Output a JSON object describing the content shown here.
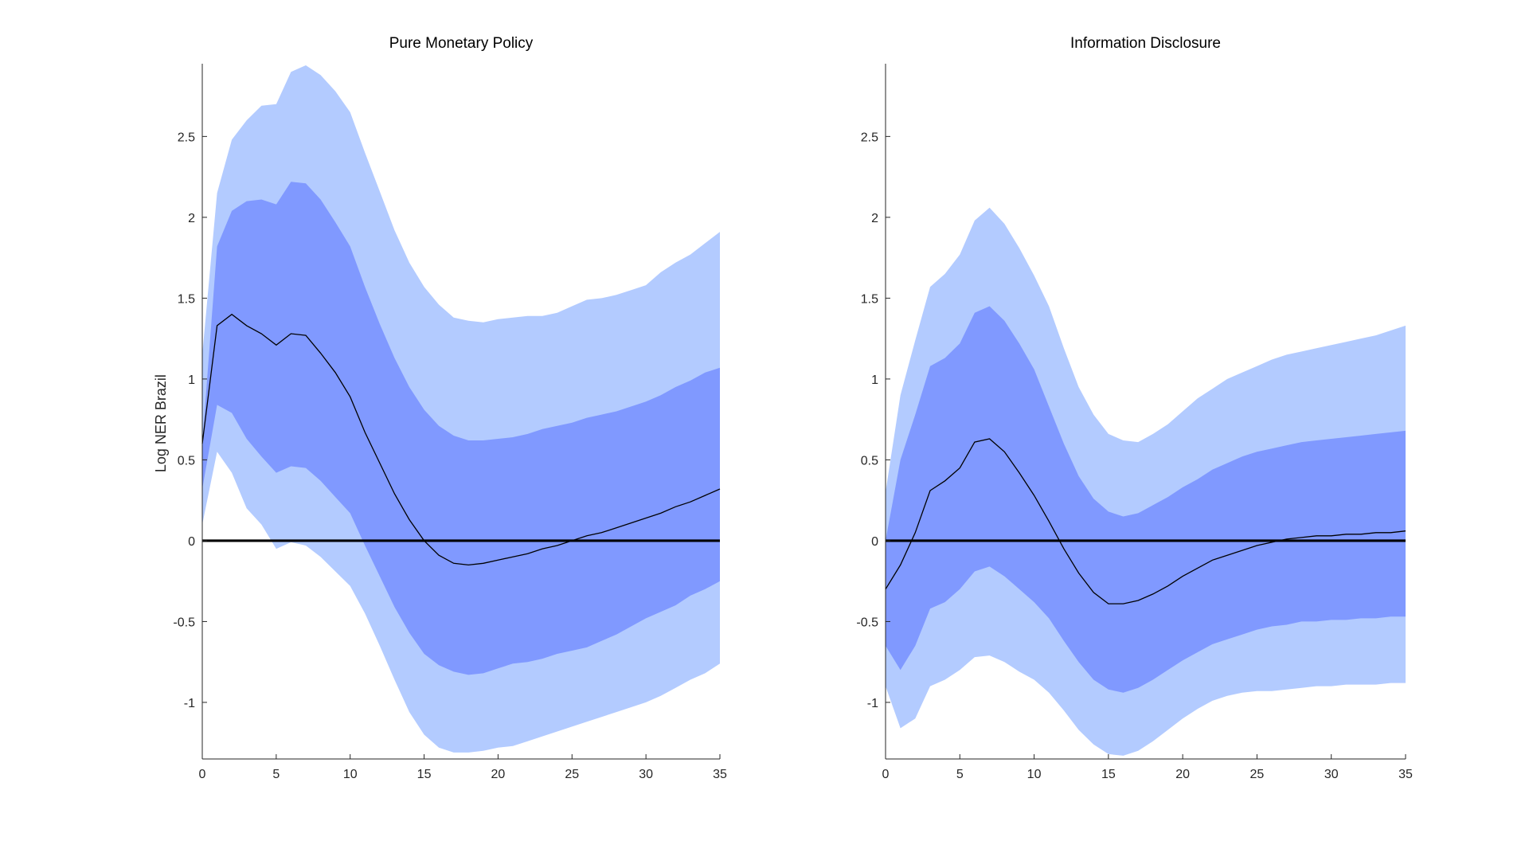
{
  "colors": {
    "band_outer": "#b3cbff",
    "band_inner": "#8099ff",
    "median_line": "#000000",
    "zero_line": "#000000",
    "axis": "#262626"
  },
  "chart_data": [
    {
      "type": "area",
      "title": "Pure Monetary Policy",
      "xlabel": "",
      "ylabel": "Log NER Brazil",
      "xlim": [
        0,
        35
      ],
      "ylim": [
        -1.35,
        2.95
      ],
      "xticks": [
        0,
        5,
        10,
        15,
        20,
        25,
        30,
        35
      ],
      "xtick_labels": [
        "0",
        "5",
        "10",
        "15",
        "20",
        "25",
        "30",
        "35"
      ],
      "yticks": [
        -1,
        -0.5,
        0,
        0.5,
        1,
        1.5,
        2,
        2.5
      ],
      "ytick_labels": [
        "-1",
        "-0.5",
        "0",
        "0.5",
        "1",
        "1.5",
        "2",
        "2.5"
      ],
      "grid": false,
      "x": [
        0,
        1,
        2,
        3,
        4,
        5,
        6,
        7,
        8,
        9,
        10,
        11,
        12,
        13,
        14,
        15,
        16,
        17,
        18,
        19,
        20,
        21,
        22,
        23,
        24,
        25,
        26,
        27,
        28,
        29,
        30,
        31,
        32,
        33,
        34,
        35
      ],
      "series": [
        {
          "name": "outer_upper",
          "values": [
            1.15,
            2.15,
            2.48,
            2.6,
            2.69,
            2.7,
            2.9,
            2.94,
            2.88,
            2.78,
            2.65,
            2.4,
            2.16,
            1.92,
            1.72,
            1.57,
            1.46,
            1.38,
            1.36,
            1.35,
            1.37,
            1.38,
            1.39,
            1.39,
            1.41,
            1.45,
            1.49,
            1.5,
            1.52,
            1.55,
            1.58,
            1.66,
            1.72,
            1.77,
            1.84,
            1.91
          ]
        },
        {
          "name": "inner_upper",
          "values": [
            0.6,
            1.82,
            2.04,
            2.1,
            2.11,
            2.08,
            2.22,
            2.21,
            2.11,
            1.97,
            1.82,
            1.57,
            1.34,
            1.13,
            0.95,
            0.81,
            0.71,
            0.65,
            0.62,
            0.62,
            0.63,
            0.64,
            0.66,
            0.69,
            0.71,
            0.73,
            0.76,
            0.78,
            0.8,
            0.83,
            0.86,
            0.9,
            0.95,
            0.99,
            1.04,
            1.07
          ]
        },
        {
          "name": "median",
          "values": [
            0.6,
            1.33,
            1.4,
            1.33,
            1.28,
            1.21,
            1.28,
            1.27,
            1.16,
            1.04,
            0.89,
            0.67,
            0.48,
            0.29,
            0.13,
            0.0,
            -0.09,
            -0.14,
            -0.15,
            -0.14,
            -0.12,
            -0.1,
            -0.08,
            -0.05,
            -0.03,
            0.0,
            0.03,
            0.05,
            0.08,
            0.11,
            0.14,
            0.17,
            0.21,
            0.24,
            0.28,
            0.32
          ]
        },
        {
          "name": "inner_lower",
          "values": [
            0.32,
            0.84,
            0.79,
            0.63,
            0.52,
            0.42,
            0.46,
            0.45,
            0.37,
            0.27,
            0.17,
            -0.03,
            -0.22,
            -0.41,
            -0.57,
            -0.7,
            -0.77,
            -0.81,
            -0.83,
            -0.82,
            -0.79,
            -0.76,
            -0.75,
            -0.73,
            -0.7,
            -0.68,
            -0.66,
            -0.62,
            -0.58,
            -0.53,
            -0.48,
            -0.44,
            -0.4,
            -0.34,
            -0.3,
            -0.25
          ]
        },
        {
          "name": "outer_lower",
          "values": [
            0.1,
            0.55,
            0.42,
            0.2,
            0.1,
            -0.05,
            -0.01,
            -0.03,
            -0.1,
            -0.19,
            -0.28,
            -0.45,
            -0.65,
            -0.86,
            -1.06,
            -1.2,
            -1.28,
            -1.31,
            -1.31,
            -1.3,
            -1.28,
            -1.27,
            -1.24,
            -1.21,
            -1.18,
            -1.15,
            -1.12,
            -1.09,
            -1.06,
            -1.03,
            -1.0,
            -0.96,
            -0.91,
            -0.86,
            -0.82,
            -0.76
          ]
        }
      ]
    },
    {
      "type": "area",
      "title": "Information Disclosure",
      "xlabel": "",
      "ylabel": "",
      "xlim": [
        0,
        35
      ],
      "ylim": [
        -1.35,
        2.95
      ],
      "xticks": [
        0,
        5,
        10,
        15,
        20,
        25,
        30,
        35
      ],
      "xtick_labels": [
        "0",
        "5",
        "10",
        "15",
        "20",
        "25",
        "30",
        "35"
      ],
      "yticks": [
        -1,
        -0.5,
        0,
        0.5,
        1,
        1.5,
        2,
        2.5
      ],
      "ytick_labels": [
        "-1",
        "-0.5",
        "0",
        "0.5",
        "1",
        "1.5",
        "2",
        "2.5"
      ],
      "grid": false,
      "x": [
        0,
        1,
        2,
        3,
        4,
        5,
        6,
        7,
        8,
        9,
        10,
        11,
        12,
        13,
        14,
        15,
        16,
        17,
        18,
        19,
        20,
        21,
        22,
        23,
        24,
        25,
        26,
        27,
        28,
        29,
        30,
        31,
        32,
        33,
        34,
        35
      ],
      "series": [
        {
          "name": "outer_upper",
          "values": [
            0.3,
            0.9,
            1.24,
            1.57,
            1.65,
            1.77,
            1.98,
            2.06,
            1.96,
            1.81,
            1.64,
            1.45,
            1.19,
            0.95,
            0.78,
            0.66,
            0.62,
            0.61,
            0.66,
            0.72,
            0.8,
            0.88,
            0.94,
            1.0,
            1.04,
            1.08,
            1.12,
            1.15,
            1.17,
            1.19,
            1.21,
            1.23,
            1.25,
            1.27,
            1.3,
            1.33
          ]
        },
        {
          "name": "inner_upper",
          "values": [
            0.0,
            0.5,
            0.78,
            1.08,
            1.13,
            1.22,
            1.41,
            1.45,
            1.36,
            1.22,
            1.06,
            0.83,
            0.6,
            0.4,
            0.26,
            0.18,
            0.15,
            0.17,
            0.22,
            0.27,
            0.33,
            0.38,
            0.44,
            0.48,
            0.52,
            0.55,
            0.57,
            0.59,
            0.61,
            0.62,
            0.63,
            0.64,
            0.65,
            0.66,
            0.67,
            0.68
          ]
        },
        {
          "name": "median",
          "values": [
            -0.3,
            -0.15,
            0.05,
            0.31,
            0.37,
            0.45,
            0.61,
            0.63,
            0.55,
            0.42,
            0.28,
            0.12,
            -0.05,
            -0.2,
            -0.32,
            -0.39,
            -0.39,
            -0.37,
            -0.33,
            -0.28,
            -0.22,
            -0.17,
            -0.12,
            -0.09,
            -0.06,
            -0.03,
            -0.01,
            0.01,
            0.02,
            0.03,
            0.03,
            0.04,
            0.04,
            0.05,
            0.05,
            0.06
          ]
        },
        {
          "name": "inner_lower",
          "values": [
            -0.65,
            -0.8,
            -0.65,
            -0.42,
            -0.38,
            -0.3,
            -0.19,
            -0.16,
            -0.22,
            -0.3,
            -0.38,
            -0.48,
            -0.62,
            -0.75,
            -0.86,
            -0.92,
            -0.94,
            -0.91,
            -0.86,
            -0.8,
            -0.74,
            -0.69,
            -0.64,
            -0.61,
            -0.58,
            -0.55,
            -0.53,
            -0.52,
            -0.5,
            -0.5,
            -0.49,
            -0.49,
            -0.48,
            -0.48,
            -0.47,
            -0.47
          ]
        },
        {
          "name": "outer_lower",
          "values": [
            -0.9,
            -1.16,
            -1.1,
            -0.9,
            -0.86,
            -0.8,
            -0.72,
            -0.71,
            -0.75,
            -0.81,
            -0.86,
            -0.94,
            -1.05,
            -1.17,
            -1.26,
            -1.32,
            -1.33,
            -1.3,
            -1.24,
            -1.17,
            -1.1,
            -1.04,
            -0.99,
            -0.96,
            -0.94,
            -0.93,
            -0.93,
            -0.92,
            -0.91,
            -0.9,
            -0.9,
            -0.89,
            -0.89,
            -0.89,
            -0.88,
            -0.88
          ]
        }
      ]
    }
  ]
}
